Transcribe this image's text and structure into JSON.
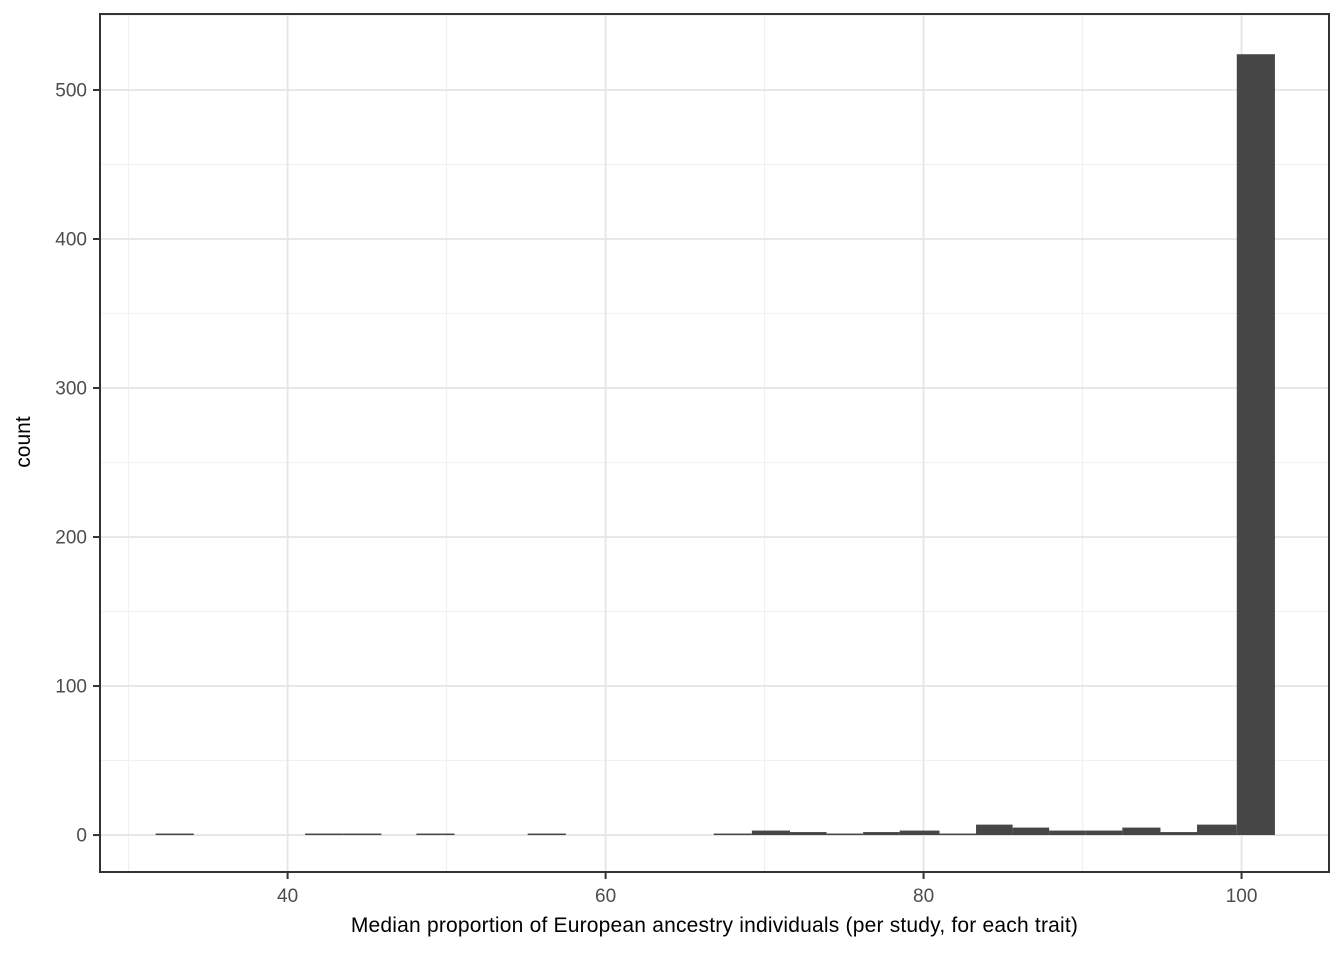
{
  "chart_data": {
    "type": "bar",
    "subtype": "histogram",
    "title": "",
    "xlabel": "Median proportion of European ancestry individuals (per study, for each trait)",
    "ylabel": "count",
    "x_ticks": [
      40,
      60,
      80,
      100
    ],
    "y_ticks": [
      0,
      100,
      200,
      300,
      400,
      500
    ],
    "x_minor_gridlines": [
      30,
      50,
      70,
      90
    ],
    "y_minor_gridlines": [
      50,
      150,
      250,
      350,
      450,
      550
    ],
    "xlim": [
      28.2,
      105.5
    ],
    "ylim": [
      -24.8,
      551
    ],
    "grid": "major and minor, light gray on white panel",
    "legend_position": "none",
    "binwidth": 2.36,
    "bins": [
      {
        "x0": 31.7,
        "x1": 34.1,
        "count": 1
      },
      {
        "x0": 41.1,
        "x1": 43.5,
        "count": 1
      },
      {
        "x0": 43.5,
        "x1": 45.9,
        "count": 1
      },
      {
        "x0": 48.1,
        "x1": 50.5,
        "count": 1
      },
      {
        "x0": 55.1,
        "x1": 57.5,
        "count": 1
      },
      {
        "x0": 66.8,
        "x1": 69.2,
        "count": 1
      },
      {
        "x0": 69.2,
        "x1": 71.6,
        "count": 3
      },
      {
        "x0": 71.6,
        "x1": 73.9,
        "count": 2
      },
      {
        "x0": 73.9,
        "x1": 76.2,
        "count": 1
      },
      {
        "x0": 76.2,
        "x1": 78.5,
        "count": 2
      },
      {
        "x0": 78.5,
        "x1": 81.0,
        "count": 3
      },
      {
        "x0": 81.0,
        "x1": 83.3,
        "count": 1
      },
      {
        "x0": 83.3,
        "x1": 85.6,
        "count": 7
      },
      {
        "x0": 85.6,
        "x1": 87.9,
        "count": 5
      },
      {
        "x0": 87.9,
        "x1": 90.2,
        "count": 3
      },
      {
        "x0": 90.2,
        "x1": 92.5,
        "count": 3
      },
      {
        "x0": 92.5,
        "x1": 94.9,
        "count": 5
      },
      {
        "x0": 94.9,
        "x1": 97.2,
        "count": 2
      },
      {
        "x0": 97.2,
        "x1": 99.7,
        "count": 7
      },
      {
        "x0": 99.7,
        "x1": 102.1,
        "count": 524
      }
    ],
    "colors": {
      "bar_fill": "#464646",
      "panel_background": "#ffffff",
      "panel_border": "#333333",
      "grid_major": "#e5e5e5",
      "grid_minor": "#f1f1f1",
      "tick_mark": "#333333",
      "tick_label": "#4d4d4d",
      "axis_title": "#000000"
    }
  }
}
